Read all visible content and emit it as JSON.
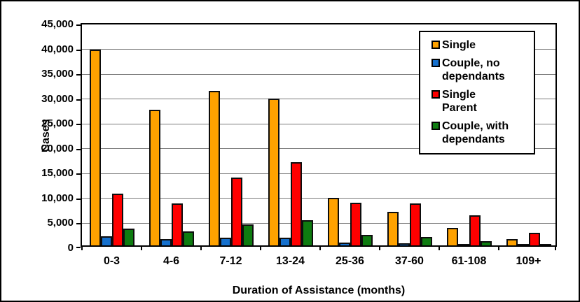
{
  "chart_data": {
    "type": "bar",
    "title": "",
    "xlabel": "Duration of Assistance (months)",
    "ylabel": "Cases",
    "categories": [
      "0-3",
      "4-6",
      "7-12",
      "13-24",
      "25-36",
      "37-60",
      "61-108",
      "109+"
    ],
    "series": [
      {
        "name": "Single",
        "legend_lines": [
          "Single"
        ],
        "color": "#FFA200",
        "values": [
          39400,
          27300,
          31100,
          29500,
          9500,
          6700,
          3500,
          1300
        ]
      },
      {
        "name": "Couple, no dependants",
        "legend_lines": [
          "Couple, no",
          "dependants"
        ],
        "color": "#1570CD",
        "values": [
          1800,
          1200,
          1600,
          1500,
          500,
          400,
          200,
          100
        ]
      },
      {
        "name": "Single Parent",
        "legend_lines": [
          "Single",
          "Parent"
        ],
        "color": "#FF0000",
        "values": [
          10400,
          8400,
          13600,
          16800,
          8600,
          8500,
          6000,
          2600
        ]
      },
      {
        "name": "Couple, with dependants",
        "legend_lines": [
          "Couple, with",
          "dependants"
        ],
        "color": "#0E7C10",
        "values": [
          3400,
          2800,
          4200,
          5100,
          2100,
          1700,
          800,
          300
        ]
      }
    ],
    "ylim": [
      0,
      45000
    ],
    "ytick_step": 5000,
    "ytick_labels": [
      "0",
      "5,000",
      "10,000",
      "15,000",
      "20,000",
      "25,000",
      "30,000",
      "35,000",
      "40,000",
      "45,000"
    ],
    "grid": true,
    "legend_position": "top-right",
    "gridline_color": "#7a7a7a",
    "axis_color": "#000000",
    "background_color": "#ffffff"
  }
}
